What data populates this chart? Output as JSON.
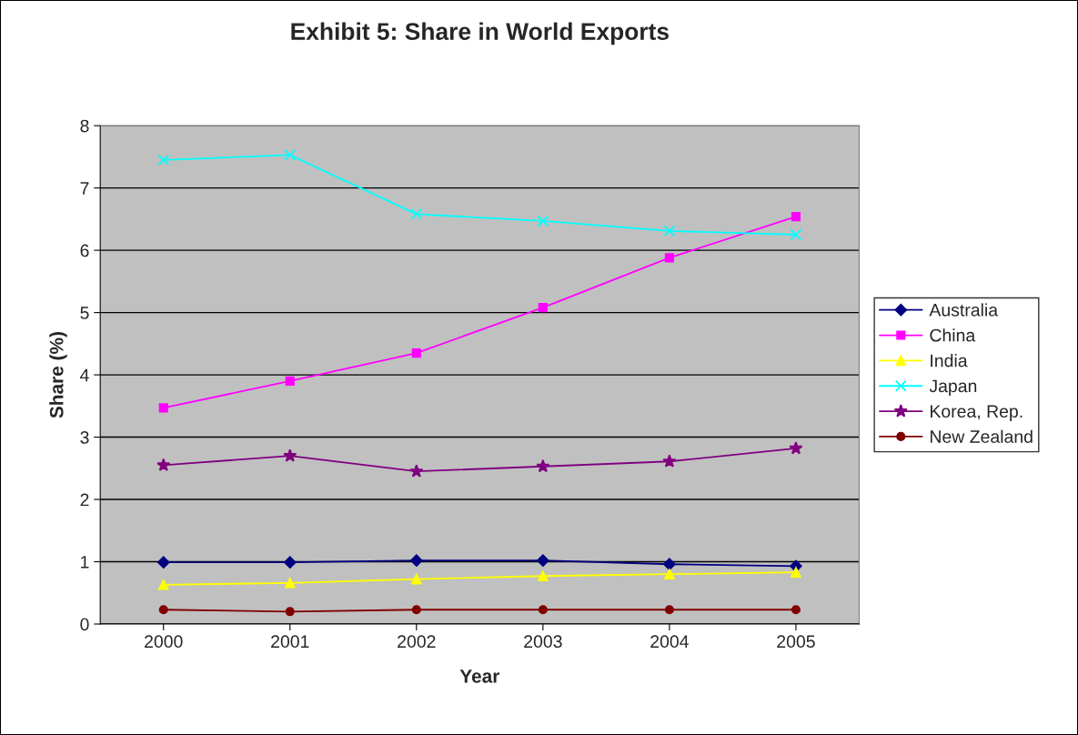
{
  "chart_data": {
    "type": "line",
    "title": "Exhibit 5: Share in World Exports",
    "xlabel": "Year",
    "ylabel": "Share (%)",
    "categories": [
      "2000",
      "2001",
      "2002",
      "2003",
      "2004",
      "2005"
    ],
    "series": [
      {
        "name": "Australia",
        "color": "#000080",
        "marker": "diamond",
        "values": [
          0.99,
          0.99,
          1.02,
          1.02,
          0.96,
          0.93
        ]
      },
      {
        "name": "China",
        "color": "#ff00ff",
        "marker": "square",
        "values": [
          3.47,
          3.9,
          4.35,
          5.08,
          5.88,
          6.54
        ]
      },
      {
        "name": "India",
        "color": "#ffff00",
        "marker": "triangle",
        "values": [
          0.63,
          0.66,
          0.72,
          0.77,
          0.8,
          0.83
        ]
      },
      {
        "name": "Japan",
        "color": "#00ffff",
        "marker": "cross",
        "values": [
          7.45,
          7.53,
          6.58,
          6.47,
          6.31,
          6.25
        ]
      },
      {
        "name": "Korea, Rep.",
        "color": "#800080",
        "marker": "star",
        "values": [
          2.55,
          2.7,
          2.45,
          2.53,
          2.61,
          2.82
        ]
      },
      {
        "name": "New Zealand",
        "color": "#800000",
        "marker": "circle",
        "values": [
          0.23,
          0.2,
          0.23,
          0.23,
          0.23,
          0.23
        ]
      }
    ],
    "ylim": [
      0,
      8
    ],
    "yticks": [
      0,
      1,
      2,
      3,
      4,
      5,
      6,
      7,
      8
    ],
    "grid": "y",
    "legend": "right"
  }
}
